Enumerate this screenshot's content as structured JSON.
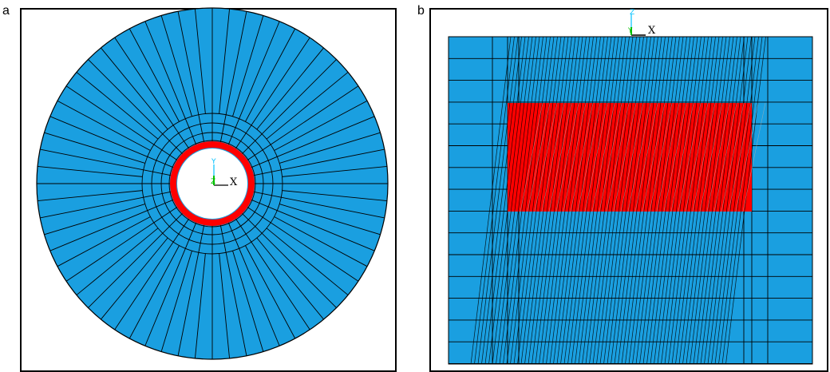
{
  "panels": [
    {
      "label": "a",
      "triad": {
        "vertical": "Y",
        "depth": "Z",
        "horizontal": "X"
      }
    },
    {
      "label": "b",
      "triad": {
        "vertical": "Z",
        "depth": "Y",
        "horizontal": "X"
      }
    }
  ],
  "colors": {
    "mesh_fill": "#1a9fe0",
    "contact_region": "#ff0000",
    "mesh_lines": "#000000",
    "axis_vertical": "#00c0ff",
    "axis_depth": "#00c000",
    "axis_horizontal": "#000000"
  }
}
